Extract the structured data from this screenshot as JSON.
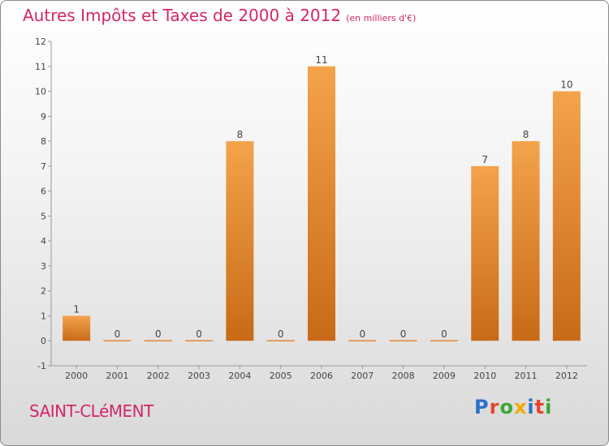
{
  "title": "Autres Impôts et Taxes de 2000 à 2012",
  "unit": "(en milliers d'€)",
  "commune": "SAINT-CLéMENT",
  "logo": {
    "text": "Proxiti",
    "colors": [
      "#2c6fc7",
      "#e8452c",
      "#39a935",
      "#f2a900",
      "#2c6fc7",
      "#e8452c",
      "#39a935"
    ]
  },
  "colors": {
    "accent": "#d4256a",
    "bar_light": "#f4a34b",
    "bar_dark": "#c86a17"
  },
  "chart_data": {
    "type": "bar",
    "categories": [
      "2000",
      "2001",
      "2002",
      "2003",
      "2004",
      "2005",
      "2006",
      "2007",
      "2008",
      "2009",
      "2010",
      "2011",
      "2012"
    ],
    "values": [
      1,
      0,
      0,
      0,
      8,
      0,
      11,
      0,
      0,
      0,
      7,
      8,
      10
    ],
    "ylim": [
      -1,
      12
    ],
    "yticks": [
      -1,
      0,
      1,
      2,
      3,
      4,
      5,
      6,
      7,
      8,
      9,
      10,
      11,
      12
    ],
    "grid": false,
    "legend": "none"
  }
}
